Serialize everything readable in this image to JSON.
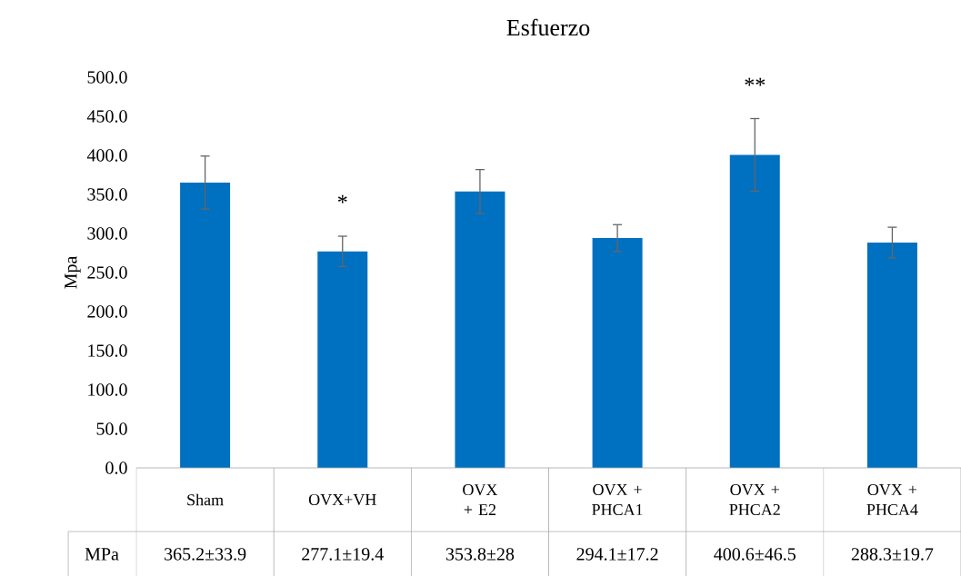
{
  "chart_data": {
    "type": "bar",
    "title": "Esfuerzo",
    "ylabel": "Mpa",
    "categories": [
      "Sham",
      "OVX+VH",
      "OVX + E2",
      "OVX + PHCA1",
      "OVX + PHCA2",
      "OVX + PHCA4"
    ],
    "series": [
      {
        "name": "MPa",
        "color": "#0070c0",
        "values": [
          365.2,
          277.1,
          353.8,
          294.1,
          400.6,
          288.3
        ],
        "errors": [
          33.9,
          19.4,
          28,
          17.2,
          46.5,
          19.7
        ],
        "value_labels": [
          "365.2±33.9",
          "277.1±19.4",
          "353.8±28",
          "294.1±17.2",
          "400.6±46.5",
          "288.3±19.7"
        ]
      }
    ],
    "ylim": [
      0,
      500
    ],
    "yticks": [
      {
        "value": 0,
        "label": "0.0"
      },
      {
        "value": 50,
        "label": "50.0"
      },
      {
        "value": 100,
        "label": "100.0"
      },
      {
        "value": 150,
        "label": "150.0"
      },
      {
        "value": 200,
        "label": "200.0"
      },
      {
        "value": 250,
        "label": "250.0"
      },
      {
        "value": 300,
        "label": "300.0"
      },
      {
        "value": 350,
        "label": "350.0"
      },
      {
        "value": 400,
        "label": "400.0"
      },
      {
        "value": 450,
        "label": "450.0"
      },
      {
        "value": 500,
        "label": "500.0"
      }
    ],
    "annotations": [
      "*",
      "**"
    ]
  }
}
